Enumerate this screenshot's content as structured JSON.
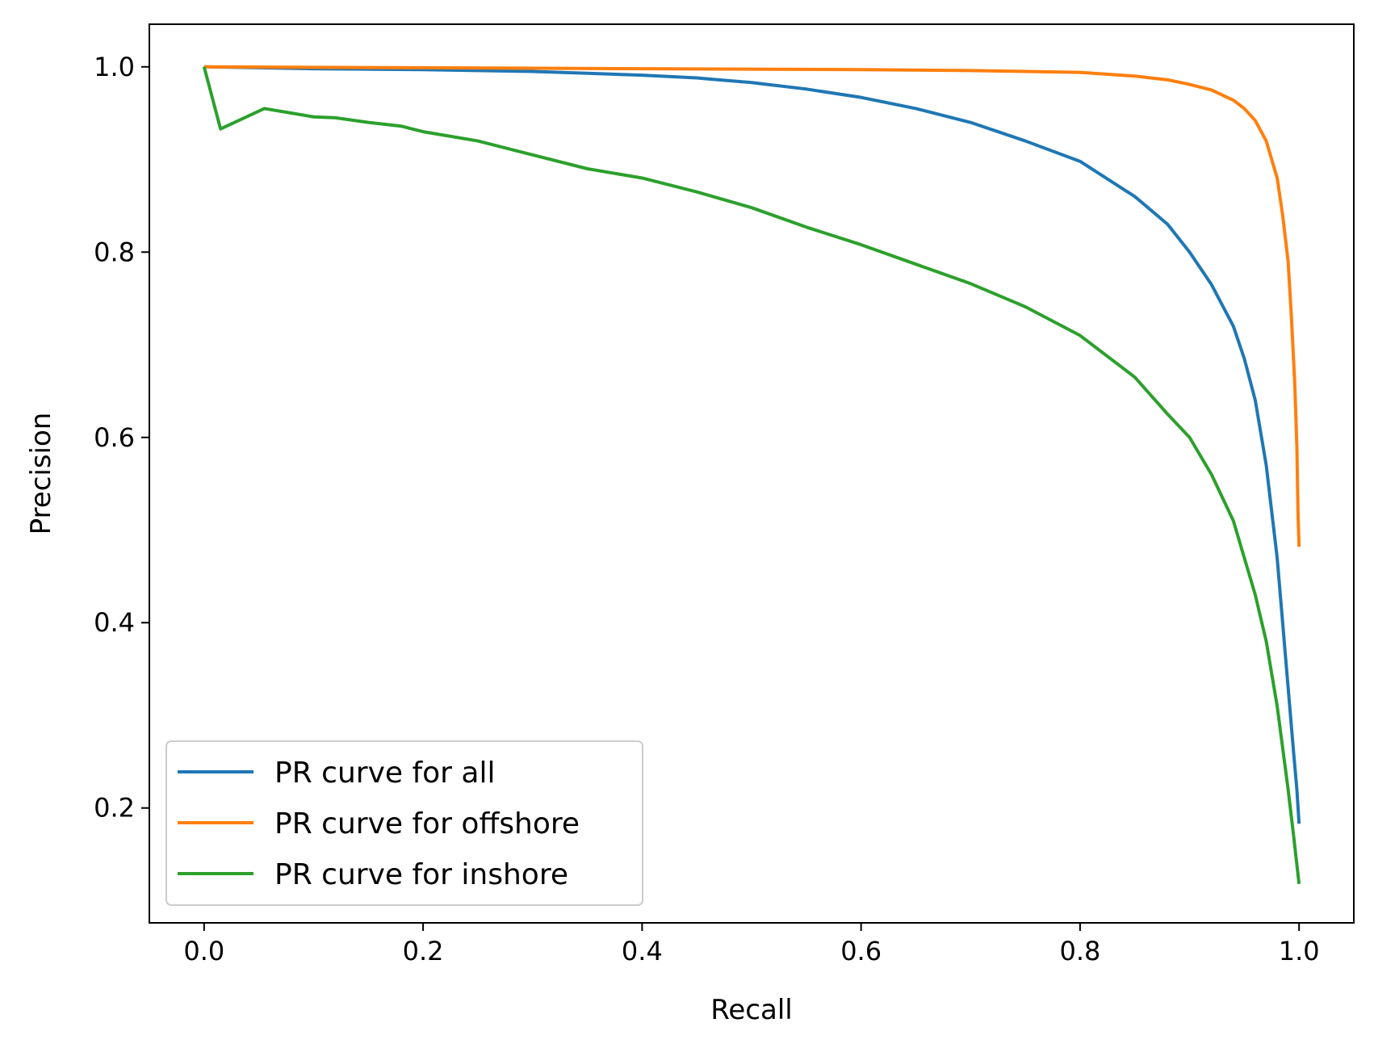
{
  "chart_data": {
    "type": "line",
    "title": "",
    "xlabel": "Recall",
    "ylabel": "Precision",
    "xlim": [
      -0.05,
      1.05
    ],
    "ylim": [
      0.076,
      1.046
    ],
    "x_ticks": [
      0.0,
      0.2,
      0.4,
      0.6,
      0.8,
      1.0
    ],
    "x_tick_labels": [
      "0.0",
      "0.2",
      "0.4",
      "0.6",
      "0.8",
      "1.0"
    ],
    "y_ticks": [
      0.2,
      0.4,
      0.6,
      0.8,
      1.0
    ],
    "y_tick_labels": [
      "0.2",
      "0.4",
      "0.6",
      "0.8",
      "1.0"
    ],
    "grid": false,
    "legend_position": "lower-left",
    "series": [
      {
        "name": "PR curve for all",
        "color": "#1f77b4",
        "x": [
          0.0,
          0.05,
          0.1,
          0.2,
          0.3,
          0.35,
          0.4,
          0.45,
          0.5,
          0.55,
          0.6,
          0.65,
          0.7,
          0.75,
          0.8,
          0.85,
          0.88,
          0.9,
          0.92,
          0.94,
          0.95,
          0.96,
          0.97,
          0.98,
          0.985,
          0.99,
          0.995,
          0.998,
          1.0
        ],
        "y": [
          1.0,
          0.999,
          0.998,
          0.997,
          0.995,
          0.993,
          0.991,
          0.988,
          0.983,
          0.976,
          0.967,
          0.955,
          0.94,
          0.92,
          0.898,
          0.86,
          0.83,
          0.8,
          0.765,
          0.72,
          0.685,
          0.64,
          0.57,
          0.47,
          0.4,
          0.33,
          0.26,
          0.22,
          0.183
        ]
      },
      {
        "name": "PR curve for offshore",
        "color": "#ff7f0e",
        "x": [
          0.0,
          0.2,
          0.4,
          0.6,
          0.7,
          0.8,
          0.85,
          0.88,
          0.9,
          0.92,
          0.94,
          0.95,
          0.96,
          0.97,
          0.98,
          0.985,
          0.99,
          0.993,
          0.996,
          0.998,
          0.999,
          1.0
        ],
        "y": [
          1.0,
          0.999,
          0.998,
          0.997,
          0.996,
          0.994,
          0.99,
          0.986,
          0.981,
          0.975,
          0.964,
          0.955,
          0.942,
          0.92,
          0.88,
          0.84,
          0.79,
          0.73,
          0.66,
          0.59,
          0.52,
          0.482
        ]
      },
      {
        "name": "PR curve for inshore",
        "color": "#2ca02c",
        "x": [
          0.0,
          0.015,
          0.055,
          0.08,
          0.1,
          0.12,
          0.15,
          0.18,
          0.2,
          0.25,
          0.3,
          0.35,
          0.4,
          0.45,
          0.5,
          0.55,
          0.6,
          0.65,
          0.7,
          0.75,
          0.8,
          0.85,
          0.88,
          0.9,
          0.92,
          0.94,
          0.95,
          0.96,
          0.97,
          0.98,
          0.99,
          0.995,
          1.0
        ],
        "y": [
          1.0,
          0.933,
          0.955,
          0.95,
          0.946,
          0.945,
          0.94,
          0.936,
          0.93,
          0.92,
          0.905,
          0.89,
          0.88,
          0.865,
          0.848,
          0.827,
          0.808,
          0.787,
          0.766,
          0.741,
          0.71,
          0.665,
          0.625,
          0.6,
          0.56,
          0.51,
          0.47,
          0.43,
          0.38,
          0.31,
          0.22,
          0.17,
          0.118
        ]
      }
    ]
  }
}
